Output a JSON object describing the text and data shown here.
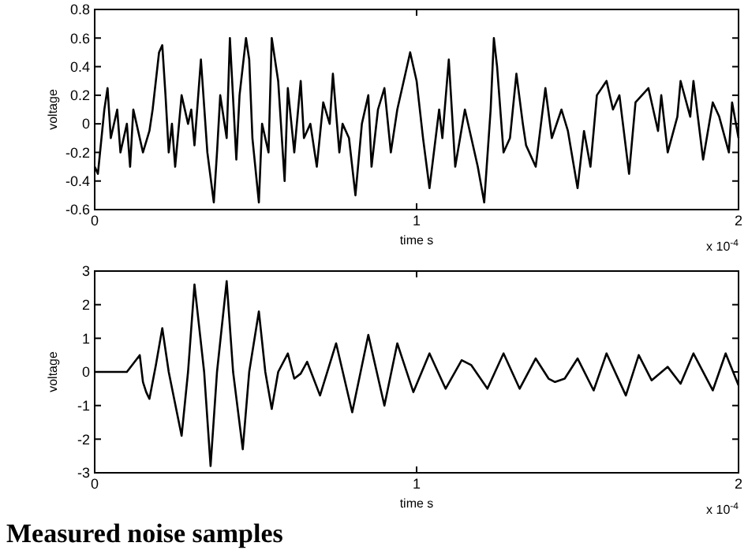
{
  "chart_data": [
    {
      "type": "line",
      "xlabel": "time s",
      "ylabel": "voltage",
      "annotations": [
        "x 10$^{-4}$"
      ],
      "xlim": [
        0,
        2
      ],
      "xticks": [
        0,
        1,
        2
      ],
      "ylim": [
        -0.6,
        0.8
      ],
      "yticks": [
        -0.6,
        -0.4,
        -0.2,
        0,
        0.2,
        0.4,
        0.6,
        0.8
      ],
      "series": [
        {
          "color": "#000000",
          "x": [
            0,
            0.01,
            0.03,
            0.04,
            0.05,
            0.07,
            0.08,
            0.1,
            0.11,
            0.12,
            0.13,
            0.15,
            0.17,
            0.18,
            0.2,
            0.21,
            0.22,
            0.23,
            0.24,
            0.25,
            0.27,
            0.29,
            0.3,
            0.31,
            0.33,
            0.35,
            0.37,
            0.38,
            0.39,
            0.41,
            0.42,
            0.44,
            0.45,
            0.47,
            0.48,
            0.49,
            0.51,
            0.52,
            0.54,
            0.55,
            0.57,
            0.59,
            0.6,
            0.62,
            0.64,
            0.65,
            0.67,
            0.69,
            0.71,
            0.73,
            0.74,
            0.76,
            0.77,
            0.79,
            0.81,
            0.83,
            0.85,
            0.86,
            0.88,
            0.9,
            0.92,
            0.94,
            0.98,
            1.0,
            1.02,
            1.04,
            1.07,
            1.08,
            1.1,
            1.12,
            1.15,
            1.17,
            1.19,
            1.21,
            1.23,
            1.24,
            1.25,
            1.27,
            1.29,
            1.31,
            1.33,
            1.34,
            1.37,
            1.4,
            1.42,
            1.45,
            1.47,
            1.5,
            1.52,
            1.54,
            1.56,
            1.59,
            1.61,
            1.63,
            1.66,
            1.68,
            1.72,
            1.75,
            1.76,
            1.78,
            1.81,
            1.82,
            1.85,
            1.86,
            1.89,
            1.92,
            1.94,
            1.97,
            1.98,
            2.0
          ],
          "values": [
            -0.3,
            -0.35,
            0.1,
            0.25,
            -0.1,
            0.1,
            -0.2,
            0,
            -0.3,
            0.1,
            0,
            -0.2,
            -0.05,
            0.1,
            0.5,
            0.55,
            0.2,
            -0.2,
            0,
            -0.3,
            0.2,
            0,
            0.1,
            -0.15,
            0.45,
            -0.2,
            -0.55,
            -0.2,
            0.2,
            -0.1,
            0.6,
            -0.25,
            0.2,
            0.6,
            0.45,
            -0.1,
            -0.55,
            0,
            -0.2,
            0.6,
            0.3,
            -0.4,
            0.25,
            -0.2,
            0.3,
            -0.1,
            0,
            -0.3,
            0.15,
            0,
            0.35,
            -0.2,
            0,
            -0.1,
            -0.5,
            0,
            0.2,
            -0.3,
            0.1,
            0.25,
            -0.2,
            0.1,
            0.5,
            0.3,
            -0.1,
            -0.45,
            0.1,
            -0.1,
            0.45,
            -0.3,
            0.1,
            -0.1,
            -0.3,
            -0.55,
            0.1,
            0.6,
            0.4,
            -0.2,
            -0.1,
            0.35,
            0,
            -0.15,
            -0.3,
            0.25,
            -0.1,
            0.1,
            -0.05,
            -0.45,
            -0.05,
            -0.3,
            0.2,
            0.3,
            0.1,
            0.2,
            -0.35,
            0.15,
            0.25,
            -0.05,
            0.2,
            -0.2,
            0.05,
            0.3,
            0.05,
            0.3,
            -0.25,
            0.15,
            0.05,
            -0.2,
            0.15,
            -0.1
          ]
        }
      ]
    },
    {
      "type": "line",
      "xlabel": "time s",
      "ylabel": "voltage",
      "annotations": [
        "x 10$^{-4}$",
        "Measured noise samples"
      ],
      "xlim": [
        0,
        2
      ],
      "xticks": [
        0,
        1,
        2
      ],
      "ylim": [
        -3,
        3
      ],
      "yticks": [
        -3,
        -2,
        -1,
        0,
        1,
        2,
        3
      ],
      "series": [
        {
          "color": "#000000",
          "x": [
            0,
            0.1,
            0.14,
            0.15,
            0.16,
            0.17,
            0.18,
            0.19,
            0.21,
            0.23,
            0.27,
            0.29,
            0.31,
            0.34,
            0.36,
            0.38,
            0.41,
            0.43,
            0.46,
            0.48,
            0.51,
            0.53,
            0.55,
            0.57,
            0.6,
            0.62,
            0.64,
            0.66,
            0.7,
            0.75,
            0.8,
            0.85,
            0.9,
            0.94,
            0.99,
            1.04,
            1.09,
            1.14,
            1.17,
            1.22,
            1.27,
            1.32,
            1.37,
            1.41,
            1.43,
            1.46,
            1.5,
            1.55,
            1.59,
            1.65,
            1.69,
            1.73,
            1.78,
            1.82,
            1.86,
            1.92,
            1.96,
            2.0
          ],
          "values": [
            0,
            0,
            0.5,
            -0.3,
            -0.6,
            -0.8,
            -0.3,
            0.2,
            1.3,
            0,
            -1.9,
            0,
            2.6,
            0,
            -2.8,
            0,
            2.7,
            0,
            -2.3,
            0,
            1.8,
            0,
            -1.1,
            0,
            0.55,
            -0.2,
            -0.05,
            0.3,
            -0.7,
            0.85,
            -1.2,
            1.1,
            -1.0,
            0.85,
            -0.6,
            0.55,
            -0.5,
            0.35,
            0.2,
            -0.5,
            0.55,
            -0.5,
            0.4,
            -0.2,
            -0.3,
            -0.2,
            0.4,
            -0.55,
            0.55,
            -0.7,
            0.5,
            -0.25,
            0.15,
            -0.35,
            0.55,
            -0.55,
            0.55,
            -0.4
          ]
        }
      ]
    }
  ]
}
